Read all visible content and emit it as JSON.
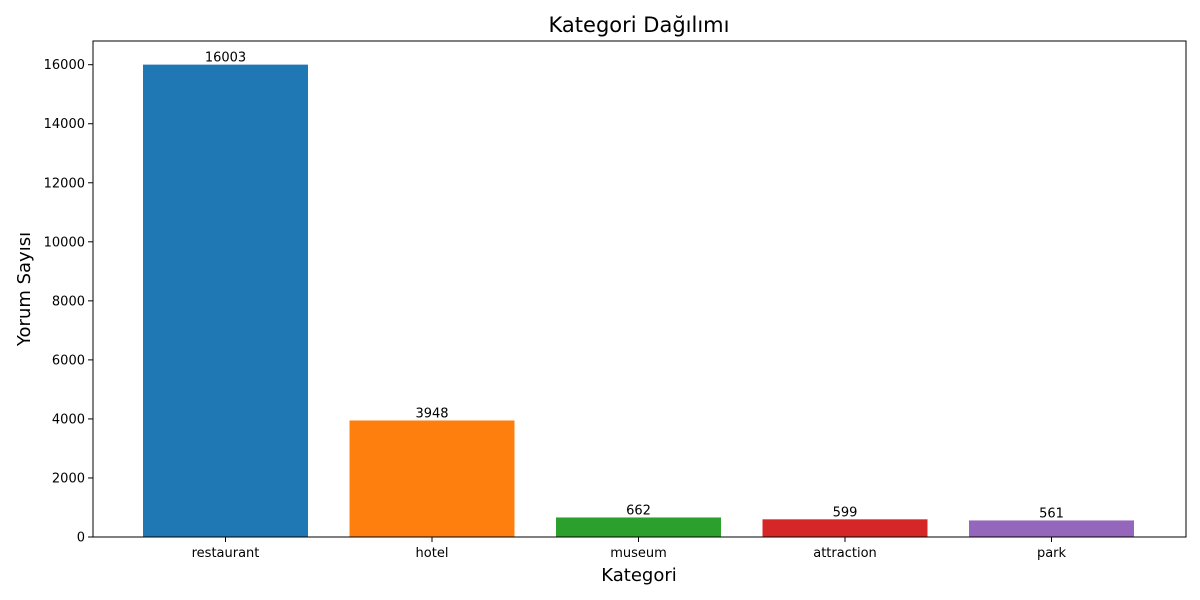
{
  "chart_data": {
    "type": "bar",
    "title": "Kategori Dağılımı",
    "xlabel": "Kategori",
    "ylabel": "Yorum Sayısı",
    "categories": [
      "restaurant",
      "hotel",
      "museum",
      "attraction",
      "park"
    ],
    "values": [
      16003,
      3948,
      662,
      599,
      561
    ],
    "colors": [
      "#1f77b4",
      "#ff7f0e",
      "#2ca02c",
      "#d62728",
      "#9467bd"
    ],
    "ylim": [
      0,
      16803
    ],
    "yticks": [
      0,
      2000,
      4000,
      6000,
      8000,
      10000,
      12000,
      14000,
      16000
    ],
    "grid": false,
    "legend": "none"
  }
}
